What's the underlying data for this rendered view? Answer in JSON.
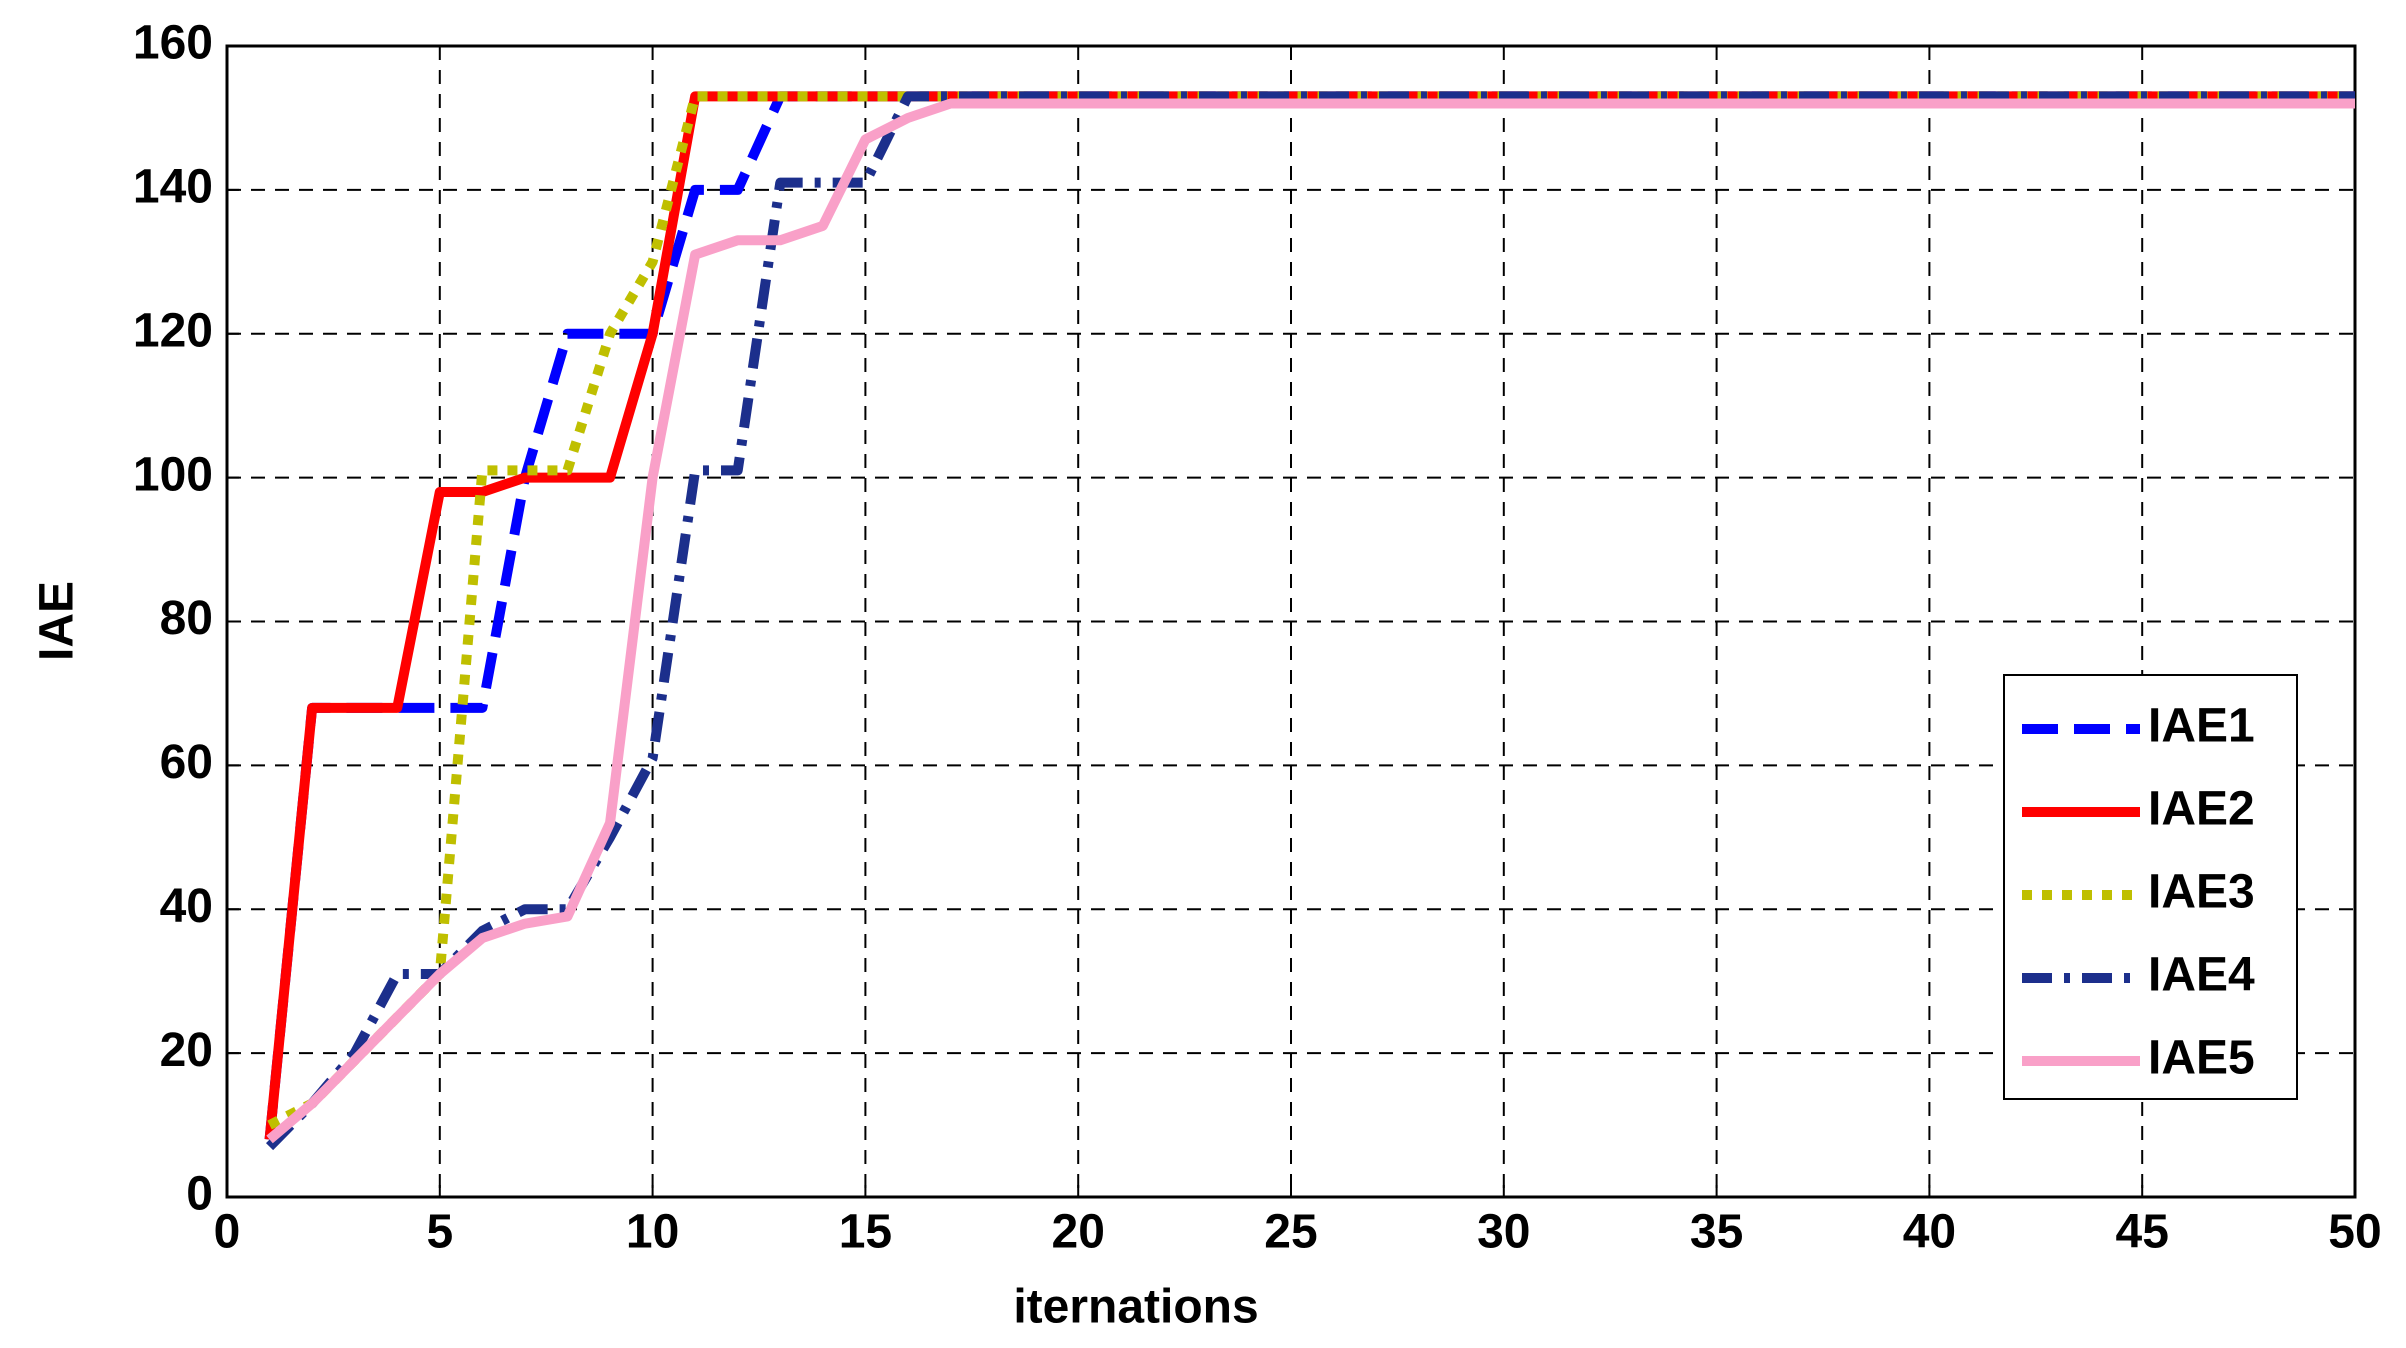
{
  "chart_data": {
    "type": "line",
    "xlabel": "iternations",
    "ylabel": "IAE",
    "x": [
      1,
      2,
      3,
      4,
      5,
      6,
      7,
      8,
      9,
      10,
      11,
      12,
      13,
      14,
      15,
      16,
      17,
      18,
      19,
      20,
      21,
      22,
      23,
      24,
      25,
      26,
      27,
      28,
      29,
      30,
      31,
      32,
      33,
      34,
      35,
      36,
      37,
      38,
      39,
      40,
      41,
      42,
      43,
      44,
      45,
      46,
      47,
      48,
      49,
      50
    ],
    "series": [
      {
        "name": "IAE1",
        "color": "#0000ff",
        "style": "dashed",
        "values": [
          8,
          68,
          68,
          68,
          68,
          68,
          100,
          120,
          120,
          120,
          140,
          140,
          153,
          153,
          153,
          153,
          153,
          153,
          153,
          153,
          153,
          153,
          153,
          153,
          153,
          153,
          153,
          153,
          153,
          153,
          153,
          153,
          153,
          153,
          153,
          153,
          153,
          153,
          153,
          153,
          153,
          153,
          153,
          153,
          153,
          153,
          153,
          153,
          153,
          153
        ]
      },
      {
        "name": "IAE2",
        "color": "#ff0000",
        "style": "solid",
        "values": [
          8,
          68,
          68,
          68,
          98,
          98,
          100,
          100,
          100,
          120,
          153,
          153,
          153,
          153,
          153,
          153,
          153,
          153,
          153,
          153,
          153,
          153,
          153,
          153,
          153,
          153,
          153,
          153,
          153,
          153,
          153,
          153,
          153,
          153,
          153,
          153,
          153,
          153,
          153,
          153,
          153,
          153,
          153,
          153,
          153,
          153,
          153,
          153,
          153,
          153
        ]
      },
      {
        "name": "IAE3",
        "color": "#bfbf00",
        "style": "dotted",
        "values": [
          10,
          13,
          19,
          25,
          31,
          101,
          101,
          101,
          120,
          130,
          153,
          153,
          153,
          153,
          153,
          153,
          153,
          153,
          153,
          153,
          153,
          153,
          153,
          153,
          153,
          153,
          153,
          153,
          153,
          153,
          153,
          153,
          153,
          153,
          153,
          153,
          153,
          153,
          153,
          153,
          153,
          153,
          153,
          153,
          153,
          153,
          153,
          153,
          153,
          153
        ]
      },
      {
        "name": "IAE4",
        "color": "#1c2f8c",
        "style": "dashdot",
        "values": [
          7,
          13,
          20,
          31,
          31,
          37,
          40,
          40,
          50,
          61,
          101,
          101,
          141,
          141,
          141,
          153,
          153,
          153,
          153,
          153,
          153,
          153,
          153,
          153,
          153,
          153,
          153,
          153,
          153,
          153,
          153,
          153,
          153,
          153,
          153,
          153,
          153,
          153,
          153,
          153,
          153,
          153,
          153,
          153,
          153,
          153,
          153,
          153,
          153,
          153
        ]
      },
      {
        "name": "IAE5",
        "color": "#f9a0c8",
        "style": "solid",
        "values": [
          8,
          13,
          19,
          25,
          31,
          36,
          38,
          39,
          52,
          100,
          131,
          133,
          133,
          135,
          147,
          150,
          152,
          152,
          152,
          152,
          152,
          152,
          152,
          152,
          152,
          152,
          152,
          152,
          152,
          152,
          152,
          152,
          152,
          152,
          152,
          152,
          152,
          152,
          152,
          152,
          152,
          152,
          152,
          152,
          152,
          152,
          152,
          152,
          152,
          152
        ]
      }
    ],
    "xlim": [
      0,
      50
    ],
    "xticks": [
      0,
      5,
      10,
      15,
      20,
      25,
      30,
      35,
      40,
      45,
      50
    ],
    "ylim": [
      0,
      160
    ],
    "yticks": [
      0,
      20,
      40,
      60,
      80,
      100,
      120,
      140,
      160
    ],
    "grid": true,
    "legend": "right"
  }
}
